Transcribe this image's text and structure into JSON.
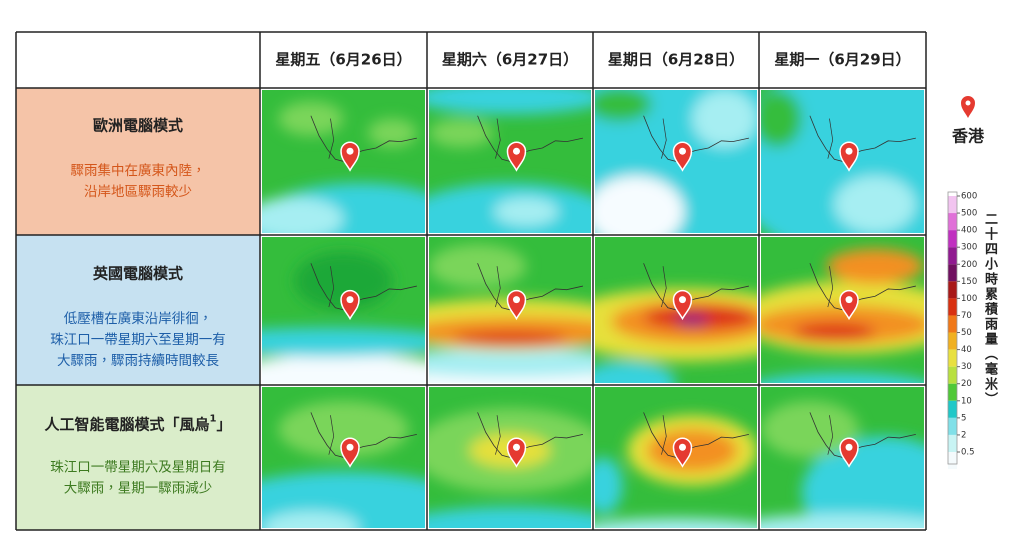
{
  "header": {
    "columns": [
      "星期五（6月26日）",
      "星期六（6月27日）",
      "星期日（6月28日）",
      "星期一（6月29日）"
    ]
  },
  "rows": [
    {
      "title": "歐洲電腦模式",
      "description": [
        "驟雨集中在廣東內陸，",
        "沿岸地區驟雨較少"
      ]
    },
    {
      "title": "英國電腦模式",
      "description": [
        "低壓槽在廣東沿岸徘徊，",
        "珠江口一帶星期六至星期一有",
        "大驟雨，驟雨持續時間較長"
      ]
    },
    {
      "title": "人工智能電腦模式「風烏",
      "title_sup": "1",
      "title_end": "」",
      "description": [
        "珠江口一帶星期六及星期日有",
        "大驟雨，星期一驟雨減少"
      ]
    }
  ],
  "legend": {
    "location": "香港",
    "title": "二十四小時累積雨量（毫米）",
    "ticks": [
      600,
      500,
      400,
      300,
      200,
      150,
      100,
      70,
      50,
      40,
      30,
      20,
      10,
      5,
      2,
      0.5
    ]
  }
}
